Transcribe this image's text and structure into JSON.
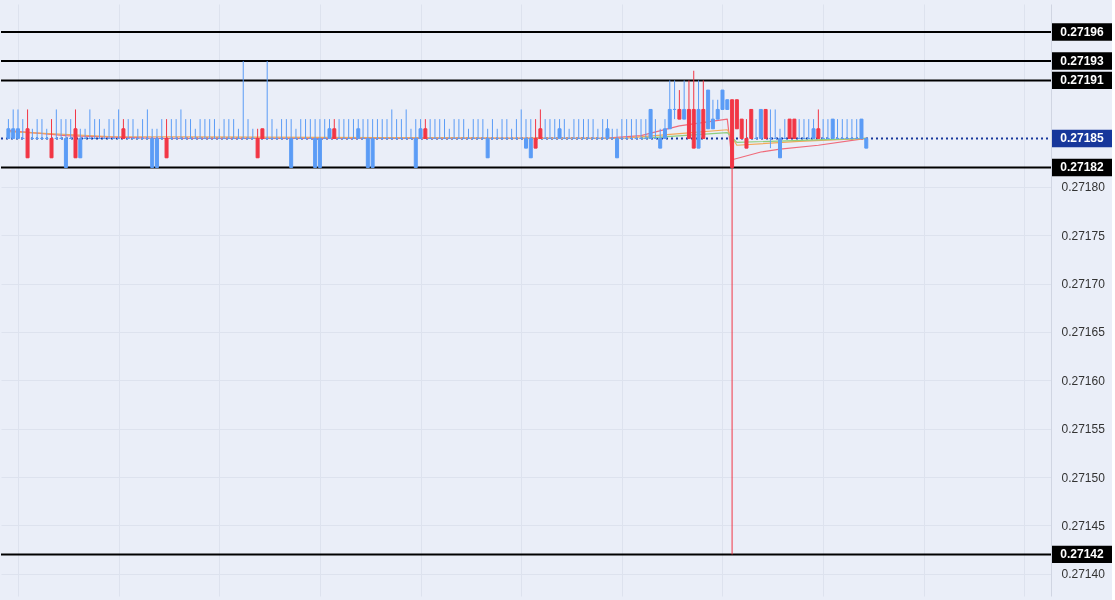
{
  "chart_data": {
    "type": "candlestick",
    "categories": [
      null,
      null,
      null,
      null,
      null,
      null,
      null,
      null,
      null,
      null,
      null,
      null,
      null,
      null,
      null,
      null,
      null,
      null,
      null,
      null,
      null,
      null,
      null,
      null,
      null,
      null,
      null,
      null,
      null,
      null,
      null,
      null,
      null,
      null,
      null,
      null,
      null,
      null,
      null,
      null,
      null,
      null,
      null,
      null,
      null,
      null,
      null,
      null,
      null,
      null,
      null,
      null,
      null,
      null,
      null,
      null,
      null,
      null,
      null,
      null,
      null,
      null,
      null,
      null,
      null,
      null,
      null,
      null,
      null,
      null,
      null,
      null,
      null,
      null,
      null,
      null,
      null,
      null,
      null,
      null,
      null,
      null,
      null,
      null,
      null,
      null,
      null,
      null,
      null,
      null,
      null,
      null,
      null,
      null,
      null,
      null,
      null,
      null,
      null,
      null,
      null,
      null,
      null,
      null,
      null,
      null,
      null,
      null,
      null,
      null,
      null,
      null,
      null,
      null,
      null,
      null,
      null,
      null,
      null,
      null,
      null,
      null,
      null,
      null,
      null,
      null,
      null,
      null,
      null,
      null,
      null,
      null,
      null,
      null,
      null,
      null,
      null,
      null,
      null,
      null,
      null,
      null,
      null,
      null,
      null,
      null,
      null,
      null,
      null,
      null,
      null,
      null,
      null,
      null,
      null,
      null,
      null,
      null,
      null,
      null,
      null,
      null,
      null,
      null,
      null,
      null,
      null,
      null,
      null,
      null,
      null,
      null,
      null,
      null,
      null,
      null,
      null,
      null,
      null,
      null,
      null,
      null,
      null,
      null,
      null,
      null,
      null,
      null,
      null,
      null,
      null,
      null,
      null,
      null,
      null,
      null,
      null,
      null,
      null,
      null,
      null,
      null,
      null,
      null,
      null,
      null,
      null,
      null,
      null,
      null,
      null,
      null,
      null,
      null,
      null,
      null,
      null
    ],
    "ohlc": [
      [
        0.27185,
        0.27187,
        0.27185,
        0.27186
      ],
      [
        0.27185,
        0.27188,
        0.27185,
        0.27186
      ],
      [
        0.27185,
        0.27188,
        0.27185,
        0.27186
      ],
      [
        0.27185,
        0.27187,
        0.27185,
        0.27185
      ],
      [
        0.27186,
        0.27188,
        0.27183,
        0.27183
      ],
      [
        0.27185,
        0.27186,
        0.27185,
        0.27185
      ],
      [
        0.27185,
        0.27187,
        0.27185,
        0.27185
      ],
      [
        0.27185,
        0.27187,
        0.27185,
        0.27185
      ],
      [
        0.27185,
        0.27186,
        0.27185,
        0.27185
      ],
      [
        0.27185,
        0.27187,
        0.27183,
        0.27183
      ],
      [
        0.27185,
        0.27188,
        0.27185,
        0.27185
      ],
      [
        0.27185,
        0.27187,
        0.27185,
        0.27185
      ],
      [
        0.27182,
        0.27187,
        0.27182,
        0.27185
      ],
      [
        0.27185,
        0.27187,
        0.27185,
        0.27185
      ],
      [
        0.27186,
        0.27188,
        0.27183,
        0.27183
      ],
      [
        0.27183,
        0.27186,
        0.27183,
        0.27185
      ],
      [
        0.27185,
        0.27186,
        0.27185,
        0.27185
      ],
      [
        0.27185,
        0.27188,
        0.27185,
        0.27185
      ],
      [
        0.27185,
        0.27187,
        0.27185,
        0.27185
      ],
      [
        0.27185,
        0.27187,
        0.27185,
        0.27185
      ],
      [
        0.27185,
        0.27186,
        0.27185,
        0.27185
      ],
      [
        0.27185,
        0.27187,
        0.27185,
        0.27185
      ],
      [
        0.27185,
        0.27187,
        0.27185,
        0.27185
      ],
      [
        0.27185,
        0.27188,
        0.27185,
        0.27185
      ],
      [
        0.27186,
        0.27187,
        0.27185,
        0.27185
      ],
      [
        0.27185,
        0.27187,
        0.27185,
        0.27185
      ],
      [
        0.27185,
        0.27187,
        0.27185,
        0.27185
      ],
      [
        0.27185,
        0.27186,
        0.27185,
        0.27185
      ],
      [
        0.27185,
        0.27187,
        0.27185,
        0.27185
      ],
      [
        0.27185,
        0.27188,
        0.27185,
        0.27185
      ],
      [
        0.27182,
        0.27186,
        0.27182,
        0.27185
      ],
      [
        0.27182,
        0.27186,
        0.27182,
        0.27185
      ],
      [
        0.27185,
        0.27187,
        0.27185,
        0.27185
      ],
      [
        0.27185,
        0.27187,
        0.27183,
        0.27183
      ],
      [
        0.27185,
        0.27187,
        0.27185,
        0.27185
      ],
      [
        0.27185,
        0.27187,
        0.27185,
        0.27185
      ],
      [
        0.27185,
        0.27188,
        0.27185,
        0.27185
      ],
      [
        0.27185,
        0.27187,
        0.27185,
        0.27185
      ],
      [
        0.27185,
        0.27187,
        0.27185,
        0.27185
      ],
      [
        0.27185,
        0.27186,
        0.27185,
        0.27185
      ],
      [
        0.27185,
        0.27187,
        0.27185,
        0.27185
      ],
      [
        0.27185,
        0.27187,
        0.27185,
        0.27185
      ],
      [
        0.27185,
        0.27187,
        0.27185,
        0.27185
      ],
      [
        0.27185,
        0.27187,
        0.27185,
        0.27185
      ],
      [
        0.27185,
        0.27186,
        0.27185,
        0.27185
      ],
      [
        0.27185,
        0.27187,
        0.27185,
        0.27185
      ],
      [
        0.27185,
        0.27187,
        0.27185,
        0.27185
      ],
      [
        0.27185,
        0.27187,
        0.27185,
        0.27185
      ],
      [
        0.27185,
        0.27186,
        0.27185,
        0.27185
      ],
      [
        0.27185,
        0.27193,
        0.27185,
        0.27185
      ],
      [
        0.27185,
        0.27187,
        0.27185,
        0.27185
      ],
      [
        0.27185,
        0.27186,
        0.27185,
        0.27185
      ],
      [
        0.27185,
        0.27186,
        0.27183,
        0.27183
      ],
      [
        0.27186,
        0.27186,
        0.27185,
        0.27185
      ],
      [
        0.27185,
        0.27193,
        0.27185,
        0.27185
      ],
      [
        0.27185,
        0.27187,
        0.27185,
        0.27185
      ],
      [
        0.27185,
        0.27186,
        0.27185,
        0.27185
      ],
      [
        0.27185,
        0.27187,
        0.27185,
        0.27185
      ],
      [
        0.27185,
        0.27187,
        0.27185,
        0.27185
      ],
      [
        0.27182,
        0.27187,
        0.27182,
        0.27185
      ],
      [
        0.27185,
        0.27186,
        0.27185,
        0.27185
      ],
      [
        0.27185,
        0.27187,
        0.27185,
        0.27185
      ],
      [
        0.27185,
        0.27187,
        0.27185,
        0.27185
      ],
      [
        0.27185,
        0.27187,
        0.27185,
        0.27185
      ],
      [
        0.27182,
        0.27187,
        0.27182,
        0.27185
      ],
      [
        0.27182,
        0.27187,
        0.27182,
        0.27185
      ],
      [
        0.27185,
        0.27187,
        0.27185,
        0.27185
      ],
      [
        0.27185,
        0.27187,
        0.27185,
        0.27186
      ],
      [
        0.27186,
        0.27187,
        0.27185,
        0.27185
      ],
      [
        0.27185,
        0.27187,
        0.27185,
        0.27185
      ],
      [
        0.27185,
        0.27187,
        0.27185,
        0.27185
      ],
      [
        0.27185,
        0.27187,
        0.27185,
        0.27185
      ],
      [
        0.27185,
        0.27187,
        0.27185,
        0.27185
      ],
      [
        0.27185,
        0.27187,
        0.27185,
        0.27186
      ],
      [
        0.27185,
        0.27187,
        0.27185,
        0.27185
      ],
      [
        0.27182,
        0.27187,
        0.27182,
        0.27185
      ],
      [
        0.27182,
        0.27187,
        0.27182,
        0.27185
      ],
      [
        0.27185,
        0.27187,
        0.27185,
        0.27185
      ],
      [
        0.27185,
        0.27187,
        0.27185,
        0.27185
      ],
      [
        0.27185,
        0.27187,
        0.27185,
        0.27185
      ],
      [
        0.27185,
        0.27188,
        0.27185,
        0.27185
      ],
      [
        0.27185,
        0.27187,
        0.27185,
        0.27185
      ],
      [
        0.27185,
        0.27187,
        0.27185,
        0.27185
      ],
      [
        0.27185,
        0.27188,
        0.27185,
        0.27185
      ],
      [
        0.27185,
        0.27186,
        0.27185,
        0.27185
      ],
      [
        0.27182,
        0.27187,
        0.27182,
        0.27185
      ],
      [
        0.27185,
        0.27187,
        0.27185,
        0.27186
      ],
      [
        0.27186,
        0.27187,
        0.27185,
        0.27185
      ],
      [
        0.27185,
        0.27187,
        0.27185,
        0.27185
      ],
      [
        0.27185,
        0.27187,
        0.27185,
        0.27185
      ],
      [
        0.27185,
        0.27187,
        0.27185,
        0.27185
      ],
      [
        0.27185,
        0.27187,
        0.27185,
        0.27185
      ],
      [
        0.27185,
        0.27186,
        0.27185,
        0.27185
      ],
      [
        0.27185,
        0.27187,
        0.27185,
        0.27185
      ],
      [
        0.27185,
        0.27187,
        0.27185,
        0.27185
      ],
      [
        0.27185,
        0.27187,
        0.27185,
        0.27185
      ],
      [
        0.27185,
        0.27186,
        0.27185,
        0.27185
      ],
      [
        0.27185,
        0.27187,
        0.27185,
        0.27185
      ],
      [
        0.27185,
        0.27187,
        0.27185,
        0.27185
      ],
      [
        0.27185,
        0.27187,
        0.27185,
        0.27185
      ],
      [
        0.27183,
        0.27186,
        0.27183,
        0.27185
      ],
      [
        0.27185,
        0.27187,
        0.27185,
        0.27185
      ],
      [
        0.27185,
        0.27186,
        0.27185,
        0.27185
      ],
      [
        0.27185,
        0.27187,
        0.27185,
        0.27185
      ],
      [
        0.27185,
        0.27187,
        0.27185,
        0.27185
      ],
      [
        0.27185,
        0.27186,
        0.27185,
        0.27185
      ],
      [
        0.27185,
        0.27187,
        0.27185,
        0.27185
      ],
      [
        0.27185,
        0.27188,
        0.27185,
        0.27185
      ],
      [
        0.27184,
        0.27187,
        0.27184,
        0.27185
      ],
      [
        0.27183,
        0.27187,
        0.27183,
        0.27185
      ],
      [
        0.27185,
        0.27187,
        0.27184,
        0.27184
      ],
      [
        0.27186,
        0.27188,
        0.27185,
        0.27185
      ],
      [
        0.27185,
        0.27187,
        0.27185,
        0.27185
      ],
      [
        0.27185,
        0.27187,
        0.27185,
        0.27185
      ],
      [
        0.27185,
        0.27187,
        0.27185,
        0.27185
      ],
      [
        0.27185,
        0.27187,
        0.27185,
        0.27186
      ],
      [
        0.27185,
        0.27187,
        0.27185,
        0.27185
      ],
      [
        0.27185,
        0.27186,
        0.27185,
        0.27185
      ],
      [
        0.27185,
        0.27187,
        0.27185,
        0.27185
      ],
      [
        0.27185,
        0.27187,
        0.27185,
        0.27185
      ],
      [
        0.27185,
        0.27187,
        0.27185,
        0.27185
      ],
      [
        0.27185,
        0.27187,
        0.27185,
        0.27185
      ],
      [
        0.27185,
        0.27187,
        0.27185,
        0.27185
      ],
      [
        0.27185,
        0.27186,
        0.27185,
        0.27185
      ],
      [
        0.27185,
        0.27187,
        0.27185,
        0.27185
      ],
      [
        0.27185,
        0.27187,
        0.27185,
        0.27186
      ],
      [
        0.27185,
        0.27186,
        0.27185,
        0.27185
      ],
      [
        0.27183,
        0.27186,
        0.27183,
        0.27185
      ],
      [
        0.27185,
        0.27187,
        0.27185,
        0.27185
      ],
      [
        0.27185,
        0.27187,
        0.27185,
        0.27185
      ],
      [
        0.27185,
        0.27187,
        0.27185,
        0.27185
      ],
      [
        0.27185,
        0.27187,
        0.27185,
        0.27185
      ],
      [
        0.27185,
        0.27187,
        0.27185,
        0.27185
      ],
      [
        0.27185,
        0.27187,
        0.27185,
        0.27185
      ],
      [
        0.27185,
        0.27188,
        0.27185,
        0.27188
      ],
      [
        0.27185,
        0.27187,
        0.27185,
        0.27185
      ],
      [
        0.27184,
        0.27186,
        0.27184,
        0.27185
      ],
      [
        0.27185,
        0.27187,
        0.27185,
        0.27186
      ],
      [
        0.27186,
        0.27191,
        0.27186,
        0.27188
      ],
      [
        0.27188,
        0.27191,
        0.27187,
        0.27188
      ],
      [
        0.27188,
        0.2719,
        0.27187,
        0.27187
      ],
      [
        0.27187,
        0.27191,
        0.27187,
        0.27188
      ],
      [
        0.27188,
        0.27191,
        0.27185,
        0.27185
      ],
      [
        0.27188,
        0.27192,
        0.27184,
        0.27184
      ],
      [
        0.27184,
        0.27191,
        0.27184,
        0.27188
      ],
      [
        0.27188,
        0.27191,
        0.27185,
        0.27185
      ],
      [
        0.27186,
        0.2719,
        0.27186,
        0.2719
      ],
      [
        0.27186,
        0.27189,
        0.27186,
        0.27187
      ],
      [
        0.27187,
        0.27189,
        0.27187,
        0.27188
      ],
      [
        0.27188,
        0.2719,
        0.27188,
        0.2719
      ],
      [
        0.27188,
        0.27189,
        0.27188,
        0.27189
      ],
      [
        0.27189,
        0.27189,
        0.27142,
        0.27182
      ],
      [
        0.27189,
        0.27189,
        0.27186,
        0.27186
      ],
      [
        0.27187,
        0.27187,
        0.27185,
        0.27185
      ],
      [
        0.27185,
        0.27187,
        0.27184,
        0.27184
      ],
      [
        0.27188,
        0.27188,
        0.27185,
        0.27185
      ],
      [
        0.27185,
        0.27187,
        0.27185,
        0.27185
      ],
      [
        0.27185,
        0.27188,
        0.27185,
        0.27188
      ],
      [
        0.27188,
        0.27188,
        0.27185,
        0.27185
      ],
      [
        0.27185,
        0.27188,
        0.27184,
        0.27185
      ],
      [
        0.27185,
        0.27188,
        0.27185,
        0.27185
      ],
      [
        0.27183,
        0.27186,
        0.27183,
        0.27185
      ],
      [
        0.27185,
        0.27187,
        0.27185,
        0.27185
      ],
      [
        0.27187,
        0.27187,
        0.27185,
        0.27185
      ],
      [
        0.27187,
        0.27187,
        0.27185,
        0.27185
      ],
      [
        0.27185,
        0.27187,
        0.27185,
        0.27185
      ],
      [
        0.27185,
        0.27187,
        0.27185,
        0.27185
      ],
      [
        0.27185,
        0.27187,
        0.27185,
        0.27185
      ],
      [
        0.27185,
        0.27187,
        0.27185,
        0.27186
      ],
      [
        0.27186,
        0.27188,
        0.27185,
        0.27185
      ],
      [
        0.27185,
        0.27187,
        0.27185,
        0.27185
      ],
      [
        0.27185,
        0.27187,
        0.27185,
        0.27185
      ],
      [
        0.27185,
        0.27187,
        0.27185,
        0.27187
      ],
      [
        0.27185,
        0.27187,
        0.27185,
        0.27185
      ],
      [
        0.27185,
        0.27187,
        0.27185,
        0.27185
      ],
      [
        0.27185,
        0.27187,
        0.27185,
        0.27185
      ],
      [
        0.27185,
        0.27187,
        0.27185,
        0.27185
      ],
      [
        0.27185,
        0.27187,
        0.27185,
        0.27185
      ],
      [
        0.27185,
        0.27187,
        0.27185,
        0.27187
      ],
      [
        0.27184,
        0.27185,
        0.27184,
        0.27185
      ],
      null,
      null,
      null,
      null,
      null,
      null,
      null,
      null,
      null,
      null,
      null,
      null,
      null,
      null,
      null,
      null,
      null,
      null,
      null,
      null,
      null,
      null,
      null,
      null,
      null,
      null,
      null,
      null,
      null,
      null,
      null,
      null,
      null,
      null,
      null,
      null,
      null
    ],
    "colors": [
      "#5b9cf6",
      "#5b9cf6",
      "#5b9cf6",
      "#5b9cf6",
      "#f23645",
      "#5b9cf6",
      "#5b9cf6",
      "#5b9cf6",
      "#5b9cf6",
      "#f23645",
      "#5b9cf6",
      "#5b9cf6",
      "#5b9cf6",
      "#5b9cf6",
      "#f23645",
      "#5b9cf6",
      "#5b9cf6",
      "#5b9cf6",
      "#5b9cf6",
      "#5b9cf6",
      "#5b9cf6",
      "#5b9cf6",
      "#5b9cf6",
      "#5b9cf6",
      "#f23645",
      "#5b9cf6",
      "#5b9cf6",
      "#5b9cf6",
      "#5b9cf6",
      "#5b9cf6",
      "#5b9cf6",
      "#5b9cf6",
      "#5b9cf6",
      "#f23645",
      "#5b9cf6",
      "#5b9cf6",
      "#5b9cf6",
      "#5b9cf6",
      "#5b9cf6",
      "#5b9cf6",
      "#5b9cf6",
      "#5b9cf6",
      "#5b9cf6",
      "#5b9cf6",
      "#5b9cf6",
      "#5b9cf6",
      "#5b9cf6",
      "#5b9cf6",
      "#5b9cf6",
      "#5b9cf6",
      "#5b9cf6",
      "#5b9cf6",
      "#f23645",
      "#f23645",
      "#5b9cf6",
      "#5b9cf6",
      "#5b9cf6",
      "#5b9cf6",
      "#5b9cf6",
      "#5b9cf6",
      "#5b9cf6",
      "#5b9cf6",
      "#5b9cf6",
      "#5b9cf6",
      "#5b9cf6",
      "#5b9cf6",
      "#5b9cf6",
      "#5b9cf6",
      "#f23645",
      "#5b9cf6",
      "#5b9cf6",
      "#5b9cf6",
      "#5b9cf6",
      "#5b9cf6",
      "#5b9cf6",
      "#5b9cf6",
      "#5b9cf6",
      "#5b9cf6",
      "#5b9cf6",
      "#5b9cf6",
      "#5b9cf6",
      "#5b9cf6",
      "#5b9cf6",
      "#5b9cf6",
      "#5b9cf6",
      "#5b9cf6",
      "#5b9cf6",
      "#f23645",
      "#5b9cf6",
      "#5b9cf6",
      "#5b9cf6",
      "#5b9cf6",
      "#5b9cf6",
      "#5b9cf6",
      "#5b9cf6",
      "#5b9cf6",
      "#5b9cf6",
      "#5b9cf6",
      "#5b9cf6",
      "#5b9cf6",
      "#5b9cf6",
      "#5b9cf6",
      "#5b9cf6",
      "#5b9cf6",
      "#5b9cf6",
      "#5b9cf6",
      "#5b9cf6",
      "#5b9cf6",
      "#5b9cf6",
      "#5b9cf6",
      "#f23645",
      "#f23645",
      "#5b9cf6",
      "#5b9cf6",
      "#5b9cf6",
      "#5b9cf6",
      "#5b9cf6",
      "#5b9cf6",
      "#5b9cf6",
      "#5b9cf6",
      "#5b9cf6",
      "#5b9cf6",
      "#5b9cf6",
      "#5b9cf6",
      "#5b9cf6",
      "#5b9cf6",
      "#5b9cf6",
      "#5b9cf6",
      "#5b9cf6",
      "#5b9cf6",
      "#5b9cf6",
      "#5b9cf6",
      "#5b9cf6",
      "#5b9cf6",
      "#5b9cf6",
      "#5b9cf6",
      "#5b9cf6",
      "#5b9cf6",
      "#5b9cf6",
      "#5b9cf6",
      "#f23645",
      "#5b9cf6",
      "#f23645",
      "#f23645",
      "#5b9cf6",
      "#f23645",
      "#5b9cf6",
      "#5b9cf6",
      "#5b9cf6",
      "#5b9cf6",
      "#5b9cf6",
      "#f23645",
      "#f23645",
      "#f23645",
      "#f23645",
      "#f23645",
      "#5b9cf6",
      "#5b9cf6",
      "#f23645",
      "#5b9cf6",
      "#5b9cf6",
      "#5b9cf6",
      "#5b9cf6",
      "#f23645",
      "#f23645",
      "#5b9cf6",
      "#5b9cf6",
      "#5b9cf6",
      "#5b9cf6",
      "#f23645",
      "#5b9cf6",
      "#5b9cf6",
      "#5b9cf6",
      "#5b9cf6",
      "#5b9cf6",
      "#5b9cf6",
      "#5b9cf6",
      "#5b9cf6",
      "#5b9cf6",
      "#5b9cf6",
      null,
      null,
      null,
      null,
      null,
      null,
      null,
      null,
      null,
      null,
      null,
      null,
      null,
      null,
      null,
      null,
      null,
      null,
      null,
      null,
      null,
      null,
      null,
      null,
      null,
      null,
      null,
      null,
      null,
      null,
      null,
      null,
      null,
      null,
      null,
      null,
      null
    ],
    "series": [
      {
        "type": "line",
        "color": "#f06b7a",
        "values": [
          0.271858,
          null,
          null,
          null,
          null,
          null,
          null,
          null,
          null,
          null,
          null,
          null,
          0.271853,
          null,
          null,
          null,
          null,
          null,
          null,
          null,
          null,
          null,
          null,
          null,
          null,
          null,
          null,
          null,
          null,
          null,
          null,
          0.27185,
          null,
          null,
          null,
          null,
          null,
          null,
          null,
          null,
          null,
          null,
          null,
          null,
          null,
          null,
          null,
          null,
          null,
          null,
          null,
          null,
          null,
          null,
          null,
          null,
          null,
          null,
          null,
          null,
          null,
          null,
          null,
          null,
          null,
          null,
          null,
          null,
          null,
          null,
          null,
          null,
          null,
          null,
          null,
          null,
          null,
          null,
          null,
          null,
          null,
          null,
          null,
          null,
          null,
          null,
          null,
          null,
          null,
          null,
          null,
          null,
          null,
          null,
          null,
          null,
          null,
          null,
          null,
          null,
          null,
          null,
          null,
          null,
          null,
          null,
          null,
          null,
          null,
          null,
          null,
          null,
          null,
          null,
          null,
          null,
          null,
          null,
          null,
          null,
          null,
          null,
          null,
          null,
          0.27185,
          null,
          null,
          null,
          null,
          null,
          null,
          null,
          0.271853,
          null,
          null,
          null,
          null,
          null,
          null,
          null,
          0.271863,
          null,
          null,
          null,
          null,
          null,
          null,
          0.271868,
          null,
          null,
          0.27187,
          0.271828,
          null,
          null,
          null,
          null,
          null,
          0.271836,
          null,
          null,
          null,
          0.271839,
          null,
          null,
          null,
          null,
          null,
          null,
          null,
          0.271843,
          null,
          null,
          null,
          null,
          null,
          null,
          null,
          null,
          null,
          0.27185,
          null,
          null,
          null,
          null,
          null,
          null,
          null,
          null,
          null,
          null,
          null,
          null,
          null,
          null,
          null,
          null,
          null,
          null,
          null,
          null,
          null,
          null,
          null,
          null,
          null,
          null,
          null,
          null,
          null,
          null,
          null,
          null,
          null,
          null,
          null,
          null,
          null
        ]
      },
      {
        "type": "line",
        "color": "#f5a857",
        "values": [
          0.271857,
          null,
          null,
          null,
          null,
          null,
          null,
          null,
          null,
          null,
          null,
          null,
          null,
          null,
          null,
          null,
          null,
          null,
          null,
          null,
          null,
          0.271852,
          null,
          null,
          null,
          null,
          null,
          null,
          null,
          null,
          null,
          null,
          null,
          null,
          null,
          null,
          null,
          null,
          null,
          null,
          null,
          null,
          null,
          null,
          null,
          null,
          null,
          null,
          null,
          null,
          null,
          null,
          null,
          null,
          null,
          null,
          null,
          null,
          null,
          null,
          null,
          null,
          null,
          null,
          null,
          null,
          null,
          null,
          null,
          null,
          null,
          null,
          null,
          null,
          null,
          null,
          null,
          null,
          null,
          null,
          null,
          null,
          null,
          null,
          null,
          null,
          null,
          null,
          null,
          null,
          null,
          null,
          null,
          null,
          null,
          null,
          null,
          null,
          null,
          null,
          null,
          null,
          null,
          null,
          null,
          null,
          null,
          null,
          null,
          null,
          null,
          null,
          null,
          null,
          null,
          null,
          null,
          null,
          null,
          null,
          null,
          null,
          null,
          null,
          null,
          null,
          null,
          null,
          0.27185,
          null,
          null,
          null,
          null,
          null,
          null,
          null,
          null,
          null,
          null,
          null,
          0.271855,
          null,
          null,
          null,
          null,
          null,
          null,
          null,
          null,
          null,
          0.271859,
          null,
          0.271843,
          null,
          null,
          null,
          null,
          null,
          null,
          null,
          null,
          null,
          null,
          null,
          null,
          0.271847,
          null,
          null,
          null,
          null,
          null,
          null,
          null,
          null,
          null,
          null,
          null,
          null,
          null,
          0.27185,
          null,
          null,
          null,
          null,
          null,
          null,
          null,
          null,
          null,
          null,
          null,
          null,
          null,
          null,
          null,
          null,
          null,
          null,
          null,
          null,
          null,
          null,
          null,
          null,
          null,
          null,
          null,
          null,
          null,
          null,
          null,
          null,
          null,
          null,
          null,
          null,
          null
        ]
      },
      {
        "type": "line",
        "color": "#8fce7e",
        "values": [
          null,
          null,
          null,
          null,
          null,
          null,
          null,
          null,
          null,
          null,
          null,
          null,
          null,
          null,
          null,
          null,
          null,
          null,
          null,
          null,
          null,
          null,
          null,
          null,
          null,
          null,
          null,
          null,
          null,
          null,
          null,
          null,
          null,
          null,
          null,
          null,
          null,
          null,
          null,
          null,
          null,
          null,
          null,
          null,
          null,
          null,
          null,
          null,
          null,
          null,
          null,
          null,
          null,
          null,
          null,
          null,
          null,
          null,
          null,
          null,
          null,
          null,
          null,
          null,
          null,
          null,
          null,
          null,
          null,
          null,
          null,
          null,
          null,
          null,
          null,
          null,
          null,
          null,
          null,
          null,
          null,
          null,
          null,
          null,
          null,
          null,
          null,
          null,
          null,
          null,
          null,
          null,
          null,
          null,
          null,
          null,
          null,
          null,
          null,
          null,
          null,
          null,
          null,
          null,
          null,
          null,
          null,
          null,
          null,
          null,
          null,
          null,
          null,
          null,
          null,
          null,
          null,
          null,
          null,
          null,
          null,
          null,
          null,
          null,
          null,
          null,
          null,
          null,
          null,
          null,
          null,
          null,
          0.27185,
          null,
          null,
          null,
          null,
          null,
          null,
          null,
          null,
          null,
          null,
          null,
          null,
          null,
          null,
          null,
          null,
          null,
          0.271856,
          null,
          0.271846,
          null,
          null,
          null,
          null,
          null,
          null,
          null,
          null,
          null,
          null,
          null,
          null,
          null,
          null,
          null,
          null,
          null,
          null,
          null,
          null,
          null,
          null,
          null,
          null,
          null,
          null,
          0.27185,
          null,
          null,
          null,
          null,
          null,
          null,
          null,
          null,
          null,
          null,
          null,
          null,
          null,
          null,
          null,
          null,
          null,
          null,
          null,
          null,
          null,
          null,
          null,
          null,
          null,
          null,
          null,
          null,
          null,
          null,
          null,
          null,
          null,
          null,
          null,
          null,
          null
        ]
      }
    ],
    "ylim": [
      0.271377,
      0.271989
    ],
    "yticks": [
      {
        "value": 0.2714,
        "label": "0.27140"
      },
      {
        "value": 0.27145,
        "label": "0.27145"
      },
      {
        "value": 0.2715,
        "label": "0.27150"
      },
      {
        "value": 0.27155,
        "label": "0.27155"
      },
      {
        "value": 0.2716,
        "label": "0.27160"
      },
      {
        "value": 0.27165,
        "label": "0.27165"
      },
      {
        "value": 0.2717,
        "label": "0.27170"
      },
      {
        "value": 0.27175,
        "label": "0.27175"
      },
      {
        "value": 0.2718,
        "label": "0.27180"
      }
    ],
    "ref_lines": [
      {
        "axis": "y",
        "value": 0.27196,
        "label": "0.27196",
        "color": "#000000"
      },
      {
        "axis": "y",
        "value": 0.27193,
        "label": "0.27193",
        "color": "#000000"
      },
      {
        "axis": "y",
        "value": 0.27191,
        "label": "0.27191",
        "color": "#000000"
      },
      {
        "axis": "y",
        "value": 0.27185,
        "label": "0.27185",
        "color": "#17379b",
        "line_style": "dotted"
      },
      {
        "axis": "y",
        "value": 0.27182,
        "label": "0.27182",
        "color": "#000000"
      },
      {
        "axis": "y",
        "value": 0.27142,
        "label": "0.27142",
        "color": "#000000"
      }
    ],
    "grid": true,
    "tick_labels": "y"
  }
}
